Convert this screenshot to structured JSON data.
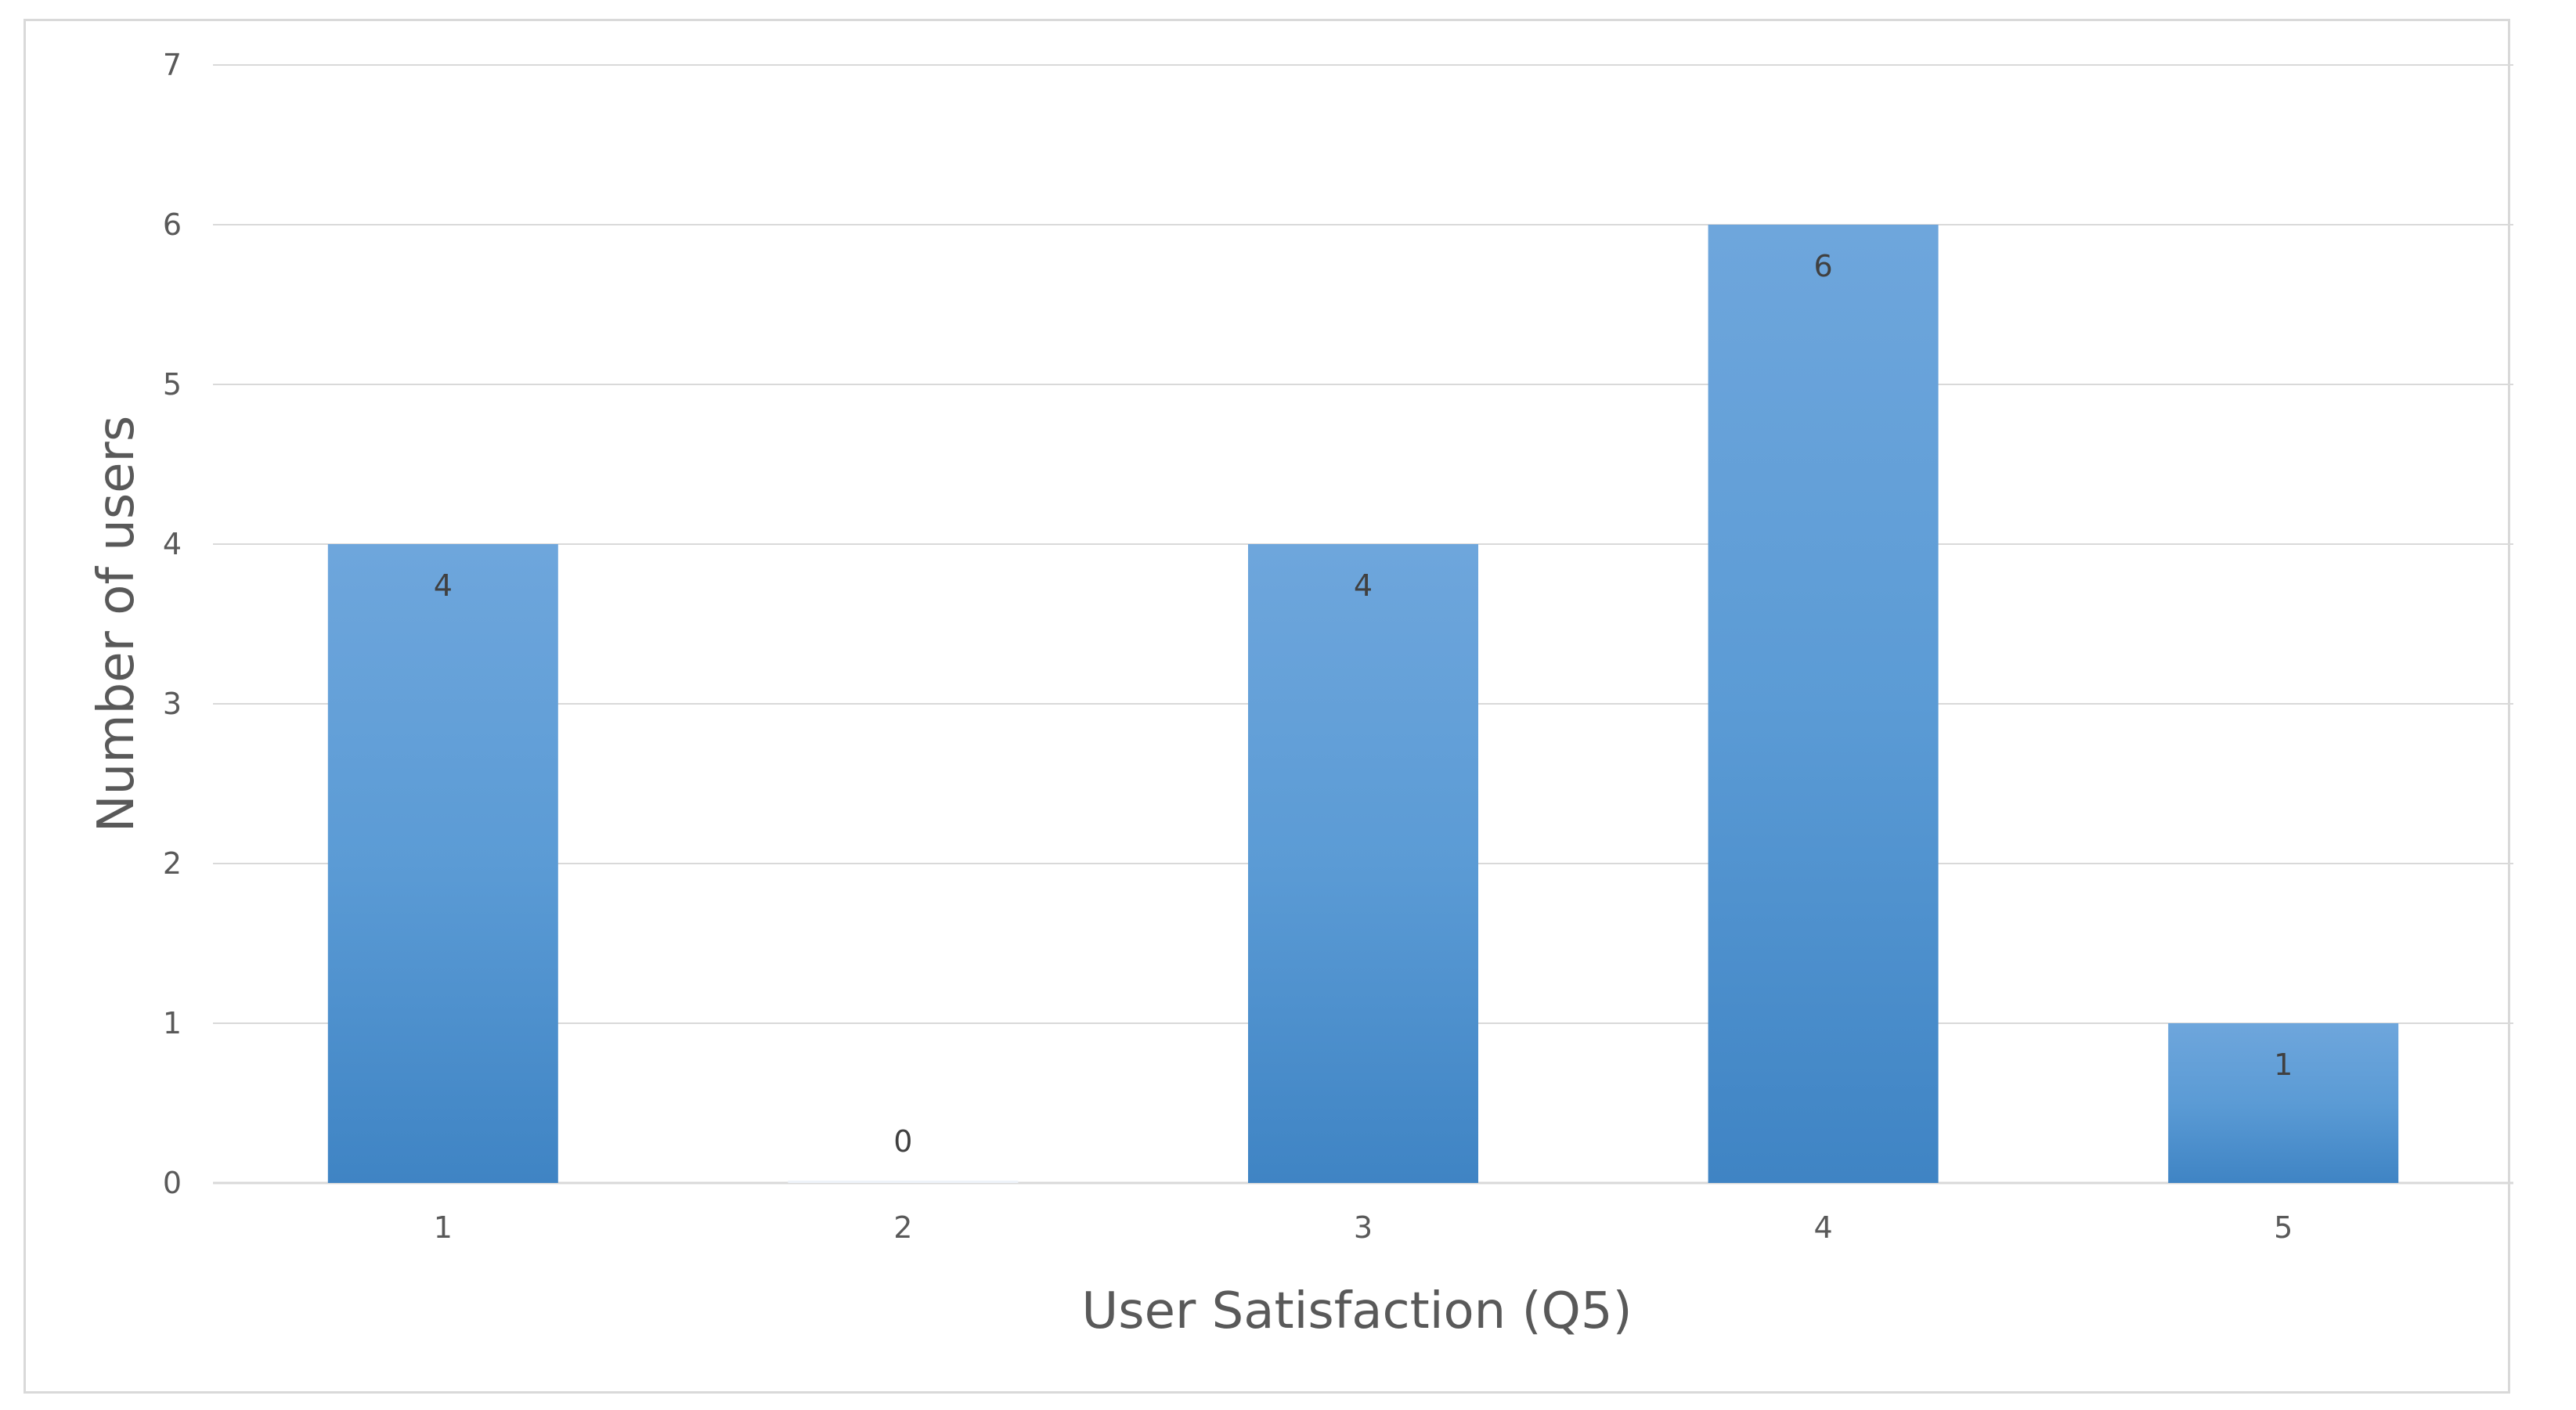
{
  "chart_data": {
    "type": "bar",
    "title": "",
    "xlabel": "User Satisfaction (Q5)",
    "ylabel": "Number of users",
    "categories": [
      "1",
      "2",
      "3",
      "4",
      "5"
    ],
    "values": [
      4,
      0,
      4,
      6,
      1
    ],
    "data_labels": [
      "4",
      "0",
      "4",
      "6",
      "1"
    ],
    "y_ticks": [
      "0",
      "1",
      "2",
      "3",
      "4",
      "5",
      "6",
      "7"
    ],
    "ylim": [
      0,
      7
    ],
    "grid": true,
    "legend": "none",
    "bar_color": "#5b9bd5",
    "bar_color_light": "#6ea6dc",
    "bar_color_dark": "#3f84c4",
    "gridline_color": "#d9d9d9"
  }
}
